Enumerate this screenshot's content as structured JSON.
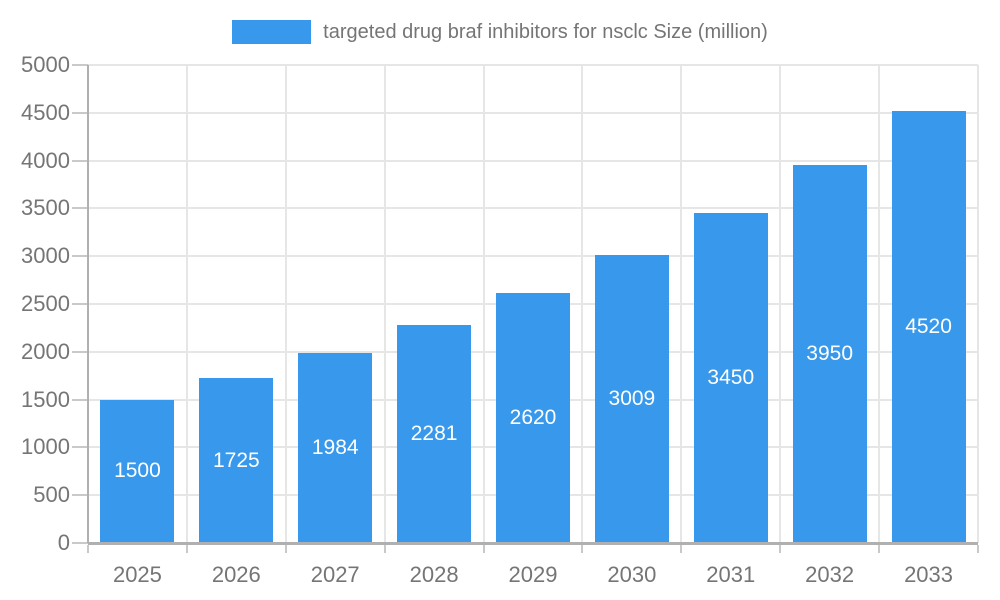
{
  "legend": {
    "label": "targeted drug braf inhibitors for nsclc Size (million)"
  },
  "chart_data": {
    "type": "bar",
    "title": "",
    "categories": [
      "2025",
      "2026",
      "2027",
      "2028",
      "2029",
      "2030",
      "2031",
      "2032",
      "2033"
    ],
    "series": [
      {
        "name": "targeted drug braf inhibitors for nsclc Size (million)",
        "values": [
          1500,
          1725,
          1984,
          2281,
          2620,
          3009,
          3450,
          3950,
          4520
        ]
      }
    ],
    "value_labels_shown": true,
    "xlabel": "",
    "ylabel": "",
    "ylim": [
      0,
      5000
    ],
    "ytick_step": 500,
    "grid": true,
    "legend_position": "top",
    "colors": {
      "bar": "#3899EC",
      "grid": "#E6E6E6",
      "axis": "#B0B0B0",
      "tick": "#C9C9C9",
      "text": "#757575",
      "value_label": "#FFFFFF",
      "background": "#FFFFFF"
    }
  }
}
